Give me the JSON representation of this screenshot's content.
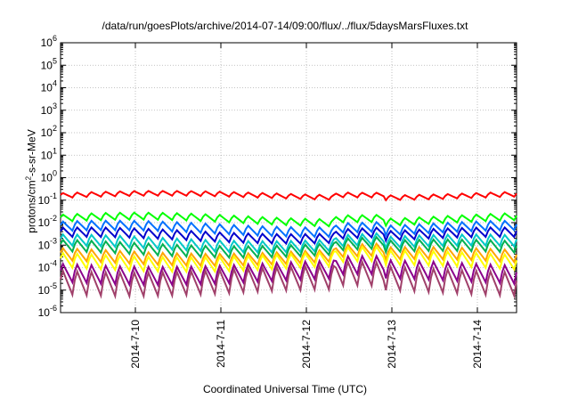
{
  "chart_data": {
    "type": "line",
    "title": "/data/run/goesPlots/archive/2014-07-14/09:00/flux/../flux/5daysMarsFluxes.txt",
    "xlabel": "Coordinated Universal Time (UTC)",
    "ylabel_pre": "protons/cm",
    "ylabel_sup": "2",
    "ylabel_post": "-s-sr-MeV",
    "ylabel": "protons/cm2-s-sr-MeV",
    "yscale": "log",
    "ylim": [
      1e-06,
      1000000.0
    ],
    "y_ticks": [
      {
        "value": -6,
        "label": "10",
        "exp": "-6"
      },
      {
        "value": -5,
        "label": "10",
        "exp": "-5"
      },
      {
        "value": -4,
        "label": "10",
        "exp": "-4"
      },
      {
        "value": -3,
        "label": "10",
        "exp": "-3"
      },
      {
        "value": -2,
        "label": "10",
        "exp": "-2"
      },
      {
        "value": -1,
        "label": "10",
        "exp": "-1"
      },
      {
        "value": 0,
        "label": "10",
        "exp": "0"
      },
      {
        "value": 1,
        "label": "10",
        "exp": "1"
      },
      {
        "value": 2,
        "label": "10",
        "exp": "2"
      },
      {
        "value": 3,
        "label": "10",
        "exp": "3"
      },
      {
        "value": 4,
        "label": "10",
        "exp": "4"
      },
      {
        "value": 5,
        "label": "10",
        "exp": "5"
      },
      {
        "value": 6,
        "label": "10",
        "exp": "6"
      }
    ],
    "xlim": [
      "2014-07-09 03:00",
      "2014-07-14 11:00"
    ],
    "x_ticks": [
      "2014-7-10",
      "2014-7-11",
      "2014-7-12",
      "2014-7-13",
      "2014-7-14"
    ],
    "grid": true,
    "sawtooth_period_hours": 4,
    "series": [
      {
        "color": "#ff0000",
        "low": 0.12,
        "high": 0.22,
        "bump": 0.2
      },
      {
        "color": "#00ff00",
        "low": 0.009,
        "high": 0.022,
        "bump": 0.3
      },
      {
        "color": "#0070ff",
        "low": 0.003,
        "high": 0.01,
        "bump": 0.3
      },
      {
        "color": "#0000cc",
        "low": 0.0015,
        "high": 0.005,
        "bump": 0.3
      },
      {
        "color": "#00c8c8",
        "low": 0.0006,
        "high": 0.0025,
        "bump": 0.3
      },
      {
        "color": "#00b050",
        "low": 0.00035,
        "high": 0.0015,
        "bump": 0.3
      },
      {
        "color": "#ffa500",
        "low": 0.00015,
        "high": 0.0007,
        "bump": 0.3
      },
      {
        "color": "#ffff00",
        "low": 8e-05,
        "high": 0.0005,
        "bump": 0.3
      },
      {
        "color": "#8b008b",
        "low": 2e-05,
        "high": 0.0002,
        "bump": 0.3
      },
      {
        "color": "#a0406a",
        "low": 6e-06,
        "high": 0.00012,
        "bump": 0.3
      }
    ]
  }
}
